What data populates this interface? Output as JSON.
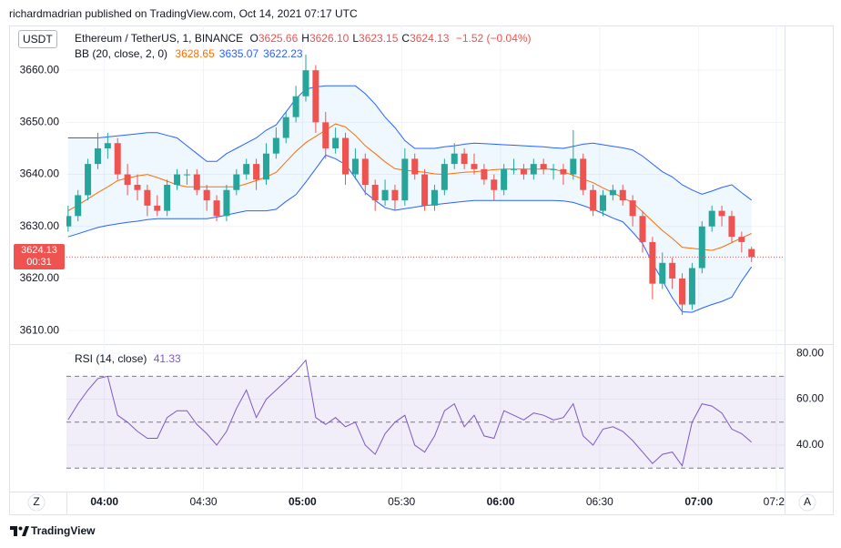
{
  "attribution": "richardmadrian published on TradingView.com, Oct 14, 2021 07:17 UTC",
  "brand": "TradingView",
  "scale_buttons": [
    "Z",
    "A"
  ],
  "chart_data": [
    {
      "type": "candlestick",
      "title": "Ethereum / TetherUS, 1, BINANCE",
      "currency": "USDT",
      "ohlc_legend": [
        {
          "label": "O",
          "value": "3625.66"
        },
        {
          "label": "H",
          "value": "3626.10"
        },
        {
          "label": "L",
          "value": "3623.15"
        },
        {
          "label": "C",
          "value": "3624.13"
        }
      ],
      "change": "−1.52 (−0.04%)",
      "price_tag": {
        "value": "3624.13",
        "countdown": "00:31"
      },
      "up_color": "#26a69a",
      "down_color": "#ef5350",
      "xlim": [
        228.5,
        446
      ],
      "xticks": [
        {
          "value": 240,
          "label": "04:00"
        },
        {
          "value": 270,
          "label": "04:30"
        },
        {
          "value": 300,
          "label": "05:00"
        },
        {
          "value": 330,
          "label": "05:30"
        },
        {
          "value": 360,
          "label": "06:00"
        },
        {
          "value": 390,
          "label": "06:30"
        },
        {
          "value": 420,
          "label": "07:00"
        },
        {
          "value": 443.5,
          "label": "07:2"
        }
      ],
      "ylim": [
        3607.4,
        3668.6
      ],
      "yticks": [
        {
          "value": 3610,
          "label": "3610.00"
        },
        {
          "value": 3620,
          "label": "3620.00"
        },
        {
          "value": 3630,
          "label": "3630.00"
        },
        {
          "value": 3640,
          "label": "3640.00"
        },
        {
          "value": 3650,
          "label": "3650.00"
        },
        {
          "value": 3660,
          "label": "3660.00"
        }
      ],
      "grid": true,
      "x": [
        229,
        232,
        235,
        238,
        241,
        244,
        247,
        250,
        253,
        256,
        259,
        262,
        265,
        268,
        271,
        274,
        277,
        280,
        283,
        286,
        289,
        292,
        295,
        298,
        301,
        304,
        307,
        310,
        313,
        316,
        319,
        322,
        325,
        328,
        331,
        334,
        337,
        340,
        343,
        346,
        349,
        352,
        355,
        358,
        361,
        364,
        367,
        370,
        373,
        376,
        379,
        382,
        385,
        388,
        391,
        394,
        397,
        400,
        403,
        406,
        409,
        412,
        415,
        418,
        421,
        424,
        427,
        430,
        433,
        436
      ],
      "open": [
        3630,
        3632,
        3636,
        3642,
        3645,
        3646,
        3640,
        3638,
        3637,
        3634,
        3633,
        3638,
        3640,
        3640,
        3637,
        3635,
        3632,
        3637,
        3640,
        3642,
        3639,
        3644,
        3647,
        3651,
        3655,
        3660,
        3650,
        3645,
        3647,
        3640,
        3643,
        3638,
        3635,
        3637,
        3635,
        3643,
        3640,
        3634,
        3637,
        3642,
        3644,
        3642,
        3641,
        3639,
        3637,
        3641,
        3641,
        3640,
        3642,
        3641,
        3641,
        3640,
        3643,
        3637,
        3633,
        3636,
        3637,
        3635,
        3632,
        3627,
        3619,
        3623,
        3620,
        3615,
        3622,
        3630,
        3633,
        3632,
        3628,
        3625.66
      ],
      "high": [
        3634,
        3637,
        3643,
        3648,
        3648,
        3647,
        3642,
        3640,
        3638,
        3636,
        3639,
        3641,
        3641,
        3641,
        3638,
        3636,
        3638,
        3641,
        3643,
        3643,
        3646,
        3649,
        3652,
        3657,
        3663,
        3661,
        3652,
        3649,
        3648,
        3645,
        3644,
        3639,
        3639,
        3638,
        3645,
        3644,
        3641,
        3638,
        3643,
        3646,
        3645,
        3644,
        3642,
        3640,
        3642,
        3643,
        3642,
        3643,
        3643,
        3642,
        3642,
        3648.5,
        3644,
        3638,
        3637,
        3638,
        3638,
        3636,
        3633,
        3628,
        3625,
        3624,
        3621,
        3623,
        3631,
        3634,
        3634,
        3633,
        3629,
        3626.1
      ],
      "low": [
        3629,
        3631,
        3635,
        3641,
        3643,
        3639,
        3636,
        3635,
        3632,
        3632,
        3632,
        3637,
        3638,
        3636,
        3633,
        3631,
        3631,
        3636,
        3639,
        3637,
        3638,
        3643,
        3646,
        3650,
        3654,
        3648,
        3643,
        3644,
        3638,
        3639,
        3636,
        3633,
        3634,
        3633,
        3634,
        3639,
        3633,
        3633,
        3636,
        3641,
        3641,
        3640,
        3638,
        3635,
        3636,
        3640,
        3639,
        3639,
        3640,
        3639,
        3638,
        3639,
        3636,
        3632,
        3632,
        3635,
        3634,
        3630,
        3625,
        3616,
        3618,
        3618,
        3613,
        3614,
        3621,
        3629,
        3630,
        3627,
        3625,
        3623.15
      ],
      "close": [
        3632,
        3636,
        3642,
        3645,
        3646,
        3640,
        3638,
        3637,
        3634,
        3633,
        3638,
        3640,
        3640,
        3637,
        3635,
        3632,
        3637,
        3640,
        3642,
        3639,
        3644,
        3647,
        3651,
        3655,
        3660,
        3650,
        3645,
        3647,
        3640,
        3643,
        3638,
        3635,
        3637,
        3635,
        3643,
        3640,
        3634,
        3637,
        3642,
        3644,
        3642,
        3641,
        3639,
        3637,
        3641,
        3641,
        3640,
        3642,
        3641,
        3641,
        3640,
        3643,
        3637,
        3633,
        3636,
        3637,
        3635,
        3632,
        3627,
        3619,
        3623,
        3620,
        3615,
        3622,
        3630,
        3633,
        3632,
        3628,
        3627,
        3624.13
      ],
      "indicator": {
        "name": "BB (20, close, 2, 0)",
        "fill": "rgba(33,150,243,0.07)",
        "bands": [
          {
            "color": "#ff6d00",
            "value_label": "3628.65",
            "values": [
              3633,
              3634.1,
              3635.3,
              3636.5,
              3637.6,
              3638.8,
              3639.3,
              3639.7,
              3640,
              3639.4,
              3638.7,
              3638,
              3637.6,
              3637.6,
              3637.6,
              3637.6,
              3637.6,
              3637.6,
              3638.2,
              3638.8,
              3639.5,
              3640.4,
              3642.4,
              3644.4,
              3646.1,
              3647.3,
              3648.5,
              3649.7,
              3649.1,
              3647.5,
              3645.5,
              3644,
              3642.4,
              3641.1,
              3640.8,
              3640.6,
              3640.4,
              3640.1,
              3640,
              3640.2,
              3640.4,
              3640.5,
              3640.7,
              3640.9,
              3641,
              3641,
              3641,
              3641,
              3641,
              3641,
              3640.5,
              3639.8,
              3639.1,
              3638.4,
              3637.4,
              3636.5,
              3635.5,
              3634.6,
              3632.8,
              3631,
              3629.2,
              3627.7,
              3626,
              3625.8,
              3625.6,
              3625.4,
              3626,
              3626.9,
              3627.8,
              3628.65
            ]
          },
          {
            "color": "#2962ff",
            "value_label": "3635.07",
            "values": [
              3647,
              3647,
              3647,
              3647,
              3647.2,
              3647.4,
              3647.6,
              3647.8,
              3648,
              3648,
              3647.5,
              3647,
              3645.5,
              3644,
              3642.5,
              3642.5,
              3644,
              3645,
              3646,
              3647,
              3648.5,
              3649.5,
              3652,
              3654.5,
              3656.4,
              3656.8,
              3657,
              3657,
              3657,
              3657,
              3655.5,
              3653.5,
              3651,
              3649,
              3646.5,
              3645,
              3645,
              3645,
              3645.3,
              3645.5,
              3645.8,
              3646,
              3645.9,
              3645.8,
              3645.7,
              3645.6,
              3645.5,
              3645.4,
              3645.3,
              3645.1,
              3645,
              3645.4,
              3645.8,
              3646,
              3645.7,
              3645.4,
              3645.1,
              3644.7,
              3643.5,
              3642,
              3640.5,
              3639.5,
              3638,
              3637,
              3636.2,
              3636.8,
              3637.5,
              3638,
              3636.5,
              3635.07
            ]
          },
          {
            "color": "#2962ff",
            "value_label": "3622.23",
            "values": [
              3628,
              3628.6,
              3629.2,
              3629.8,
              3630.2,
              3630.5,
              3630.8,
              3631,
              3631.3,
              3631.5,
              3631.5,
              3631.5,
              3631.5,
              3631.5,
              3631.5,
              3631.8,
              3632.2,
              3632.6,
              3633,
              3633,
              3633,
              3633.3,
              3634.8,
              3636.1,
              3638.5,
              3641.1,
              3643.7,
              3643,
              3641.9,
              3639.3,
              3636.5,
              3635,
              3633.6,
              3633.1,
              3633.4,
              3633.7,
              3634,
              3634.2,
              3634.4,
              3634.6,
              3634.8,
              3635,
              3635,
              3635,
              3635,
              3635,
              3635,
              3635,
              3635,
              3635,
              3634.9,
              3634.6,
              3634,
              3633.3,
              3632.5,
              3631.6,
              3630.9,
              3628.9,
              3626.7,
              3623,
              3619.6,
              3616.3,
              3613.6,
              3613.5,
              3614.3,
              3615,
              3615.6,
              3616.4,
              3619.5,
              3622.23
            ]
          }
        ]
      }
    },
    {
      "type": "line",
      "title": "RSI (14, close)",
      "value_label": "41.33",
      "color": "#7e57c2",
      "fill": "rgba(126,87,194,0.1)",
      "levels": [
        70,
        50,
        30
      ],
      "ylim": [
        19.8,
        84
      ],
      "yticks": [
        {
          "value": 40,
          "label": "40.00"
        },
        {
          "value": 60,
          "label": "60.00"
        },
        {
          "value": 80,
          "label": "80.00"
        }
      ],
      "values": [
        51,
        58,
        64,
        69,
        70,
        53,
        50,
        46,
        43,
        43,
        52,
        55,
        55,
        49,
        45,
        40,
        46,
        56,
        64,
        52,
        60,
        64,
        68,
        72,
        77,
        52,
        49,
        52,
        48,
        50,
        40,
        36,
        45,
        50,
        53,
        40,
        37,
        44,
        55,
        58,
        48,
        53,
        44,
        43,
        55,
        53,
        51,
        54,
        53,
        51,
        52,
        58,
        44,
        40,
        47,
        48,
        46,
        42,
        37,
        32,
        36,
        37,
        31,
        50,
        58,
        57,
        54,
        47,
        45,
        41.33
      ]
    }
  ]
}
